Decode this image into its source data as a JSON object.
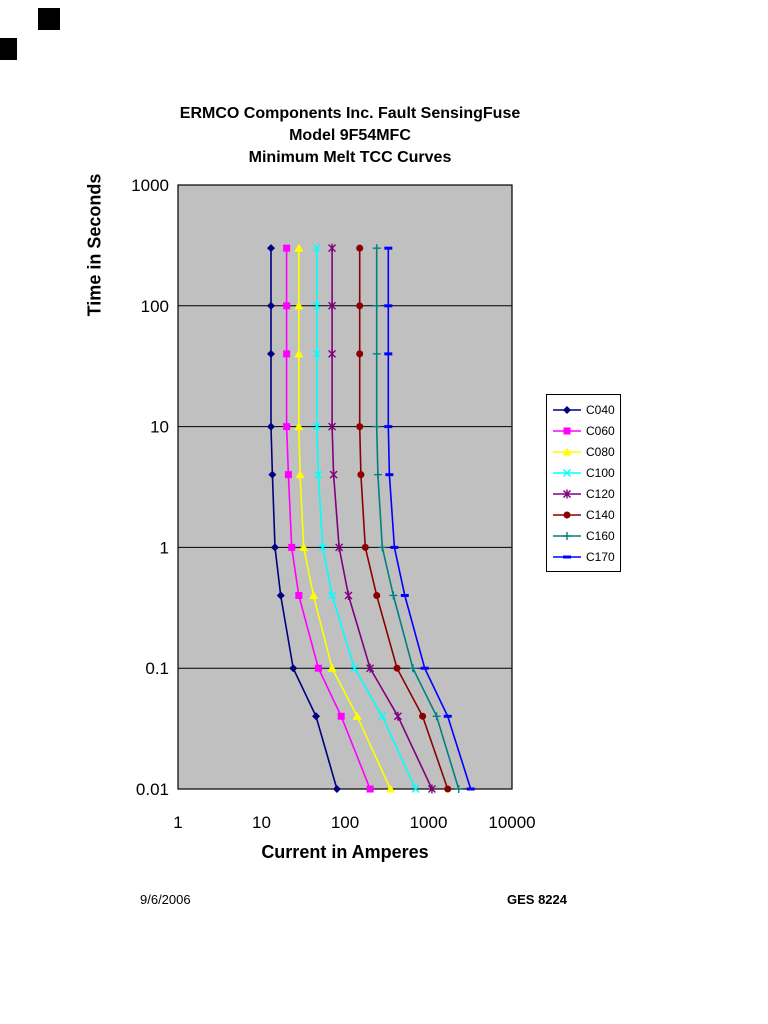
{
  "title": {
    "line1": "ERMCO Components Inc. Fault SensingFuse",
    "line2": "Model 9F54MFC",
    "line3": "Minimum Melt TCC Curves"
  },
  "axes": {
    "y_title": "Time in Seconds",
    "x_title": "Current in Amperes"
  },
  "footer": {
    "date": "9/6/2006",
    "doc_ref": "GES 8224"
  },
  "chart_data": {
    "type": "line",
    "title": "ERMCO Components Inc. Fault SensingFuse Model 9F54MFC Minimum Melt TCC Curves",
    "xlabel": "Current in Amperes",
    "ylabel": "Time in Seconds",
    "x_scale": "log",
    "y_scale": "log",
    "xlim": [
      1,
      10000
    ],
    "ylim": [
      0.01,
      1000
    ],
    "x_ticks": [
      "1",
      "10",
      "100",
      "1000",
      "10000"
    ],
    "y_ticks": [
      "1000",
      "100",
      "10",
      "1",
      "0.1",
      "0.01"
    ],
    "grid": "horizontal-major-only",
    "plot_bg": "#c0c0c0",
    "legend_position": "right",
    "times": [
      300,
      100,
      40,
      10,
      4,
      1,
      0.4,
      0.1,
      0.04,
      0.01
    ],
    "series": [
      {
        "name": "C040",
        "color": "#000080",
        "marker": "diamond",
        "currents": [
          13,
          13,
          13,
          13,
          13.5,
          14.5,
          17,
          24,
          45,
          80
        ]
      },
      {
        "name": "C060",
        "color": "#ff00ff",
        "marker": "square",
        "currents": [
          20,
          20,
          20,
          20,
          21,
          23,
          28,
          48,
          90,
          200
        ]
      },
      {
        "name": "C080",
        "color": "#ffff00",
        "marker": "triangle",
        "currents": [
          28,
          28,
          28,
          28,
          29,
          32,
          42,
          70,
          140,
          350
        ]
      },
      {
        "name": "C100",
        "color": "#00ffff",
        "marker": "x",
        "currents": [
          46,
          46,
          46,
          46,
          48,
          54,
          70,
          130,
          280,
          700
        ]
      },
      {
        "name": "C120",
        "color": "#800080",
        "marker": "star",
        "currents": [
          70,
          70,
          70,
          70,
          73,
          85,
          110,
          200,
          430,
          1100
        ]
      },
      {
        "name": "C140",
        "color": "#8b0000",
        "marker": "circle",
        "currents": [
          150,
          150,
          150,
          150,
          155,
          175,
          240,
          420,
          850,
          1700
        ]
      },
      {
        "name": "C160",
        "color": "#008080",
        "marker": "plus",
        "currents": [
          240,
          240,
          240,
          240,
          248,
          280,
          380,
          650,
          1250,
          2300
        ]
      },
      {
        "name": "C170",
        "color": "#0000ff",
        "marker": "dash",
        "currents": [
          330,
          330,
          330,
          330,
          340,
          390,
          520,
          900,
          1700,
          3200
        ]
      }
    ]
  }
}
